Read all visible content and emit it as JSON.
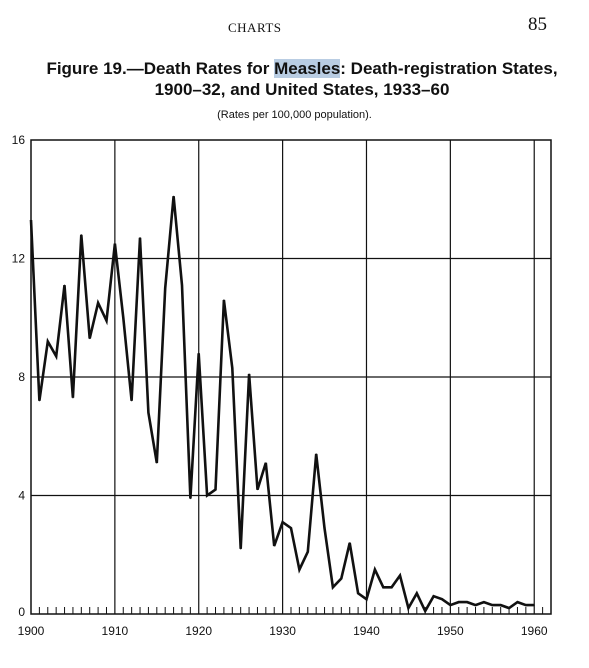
{
  "header": {
    "running_title": "CHARTS",
    "page_number": "85"
  },
  "figure": {
    "label": "Figure 19.",
    "title_pre": "—Death Rates for ",
    "title_highlight": "Measles",
    "title_post": ":  Death-registration States,",
    "title_line2": "1900–32, and United States, 1933–60",
    "subtitle": "(Rates per 100,000 population)."
  },
  "chart_data": {
    "type": "line",
    "title": "Death Rates for Measles: Death-registration States, 1900–32, and United States, 1933–60",
    "xlabel": "",
    "ylabel": "",
    "xlim": [
      1900,
      1962
    ],
    "ylim": [
      0,
      16
    ],
    "x_ticks": [
      1900,
      1910,
      1920,
      1930,
      1940,
      1950,
      1960
    ],
    "y_ticks": [
      0,
      4,
      8,
      12,
      16
    ],
    "grid": true,
    "line_color": "#111111",
    "series": [
      {
        "x": [
          1900,
          1901,
          1902,
          1903,
          1904,
          1905,
          1906,
          1907,
          1908,
          1909,
          1910,
          1911,
          1912,
          1913,
          1914,
          1915,
          1916,
          1917,
          1918,
          1919,
          1920,
          1921,
          1922,
          1923,
          1924,
          1925,
          1926,
          1927,
          1928,
          1929,
          1930,
          1931,
          1932,
          1933,
          1934,
          1935,
          1936,
          1937,
          1938,
          1939,
          1940,
          1941,
          1942,
          1943,
          1944,
          1945,
          1946,
          1947,
          1948,
          1949,
          1950,
          1951,
          1952,
          1953,
          1954,
          1955,
          1956,
          1957,
          1958,
          1959,
          1960
        ],
        "values": [
          13.3,
          7.2,
          9.2,
          8.7,
          11.1,
          7.3,
          12.8,
          9.3,
          10.5,
          9.9,
          12.5,
          10.0,
          7.2,
          12.7,
          6.8,
          5.1,
          11.0,
          14.1,
          11.1,
          3.9,
          8.8,
          4.0,
          4.2,
          10.6,
          8.3,
          2.2,
          8.1,
          4.2,
          5.1,
          2.3,
          3.1,
          2.9,
          1.5,
          2.1,
          5.4,
          2.9,
          0.9,
          1.2,
          2.4,
          0.7,
          0.5,
          1.5,
          0.9,
          0.9,
          1.3,
          0.2,
          0.7,
          0.1,
          0.6,
          0.5,
          0.3,
          0.4,
          0.4,
          0.3,
          0.4,
          0.3,
          0.3,
          0.2,
          0.4,
          0.3,
          0.3
        ]
      }
    ]
  }
}
